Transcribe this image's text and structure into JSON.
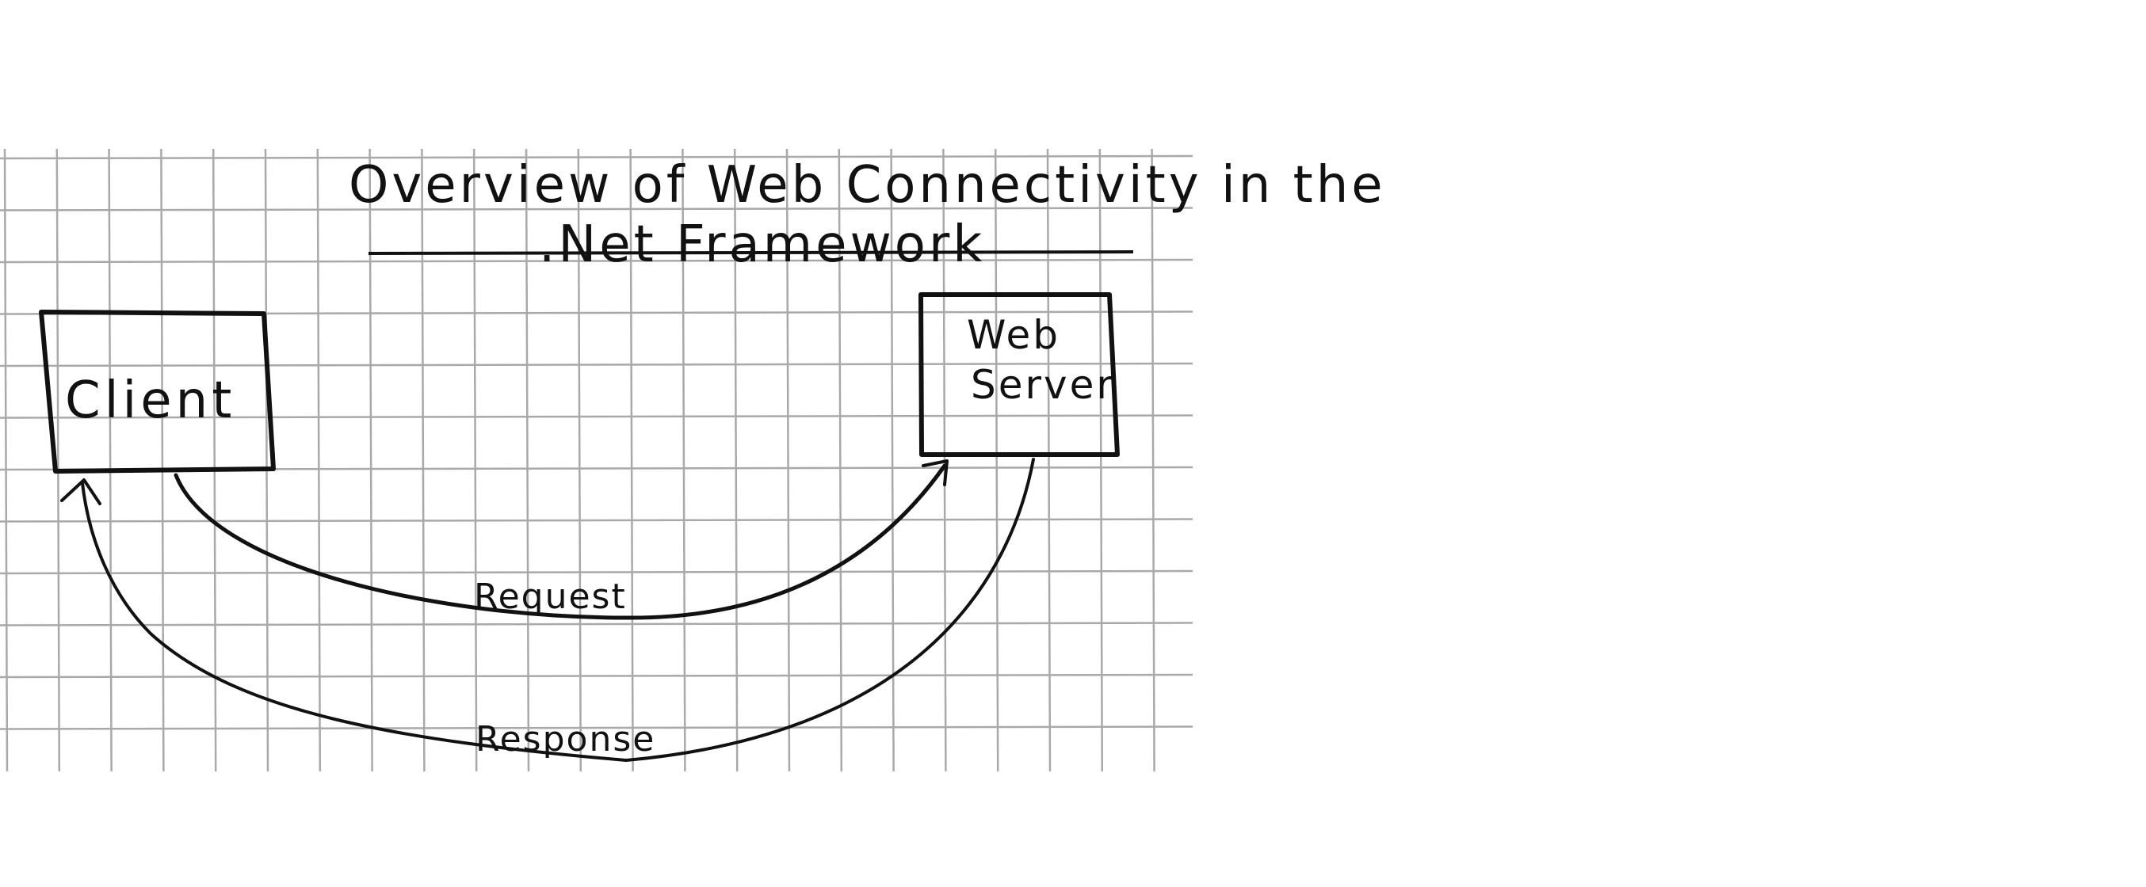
{
  "title": {
    "line1": "Overview of Web Connectivity in the",
    "line2": ".Net Framework"
  },
  "nodes": {
    "client": {
      "label": "Client"
    },
    "server": {
      "label_line1": "Web",
      "label_line2": "Server"
    }
  },
  "edges": {
    "request": {
      "label": "Request",
      "from": "Client",
      "to": "Web Server"
    },
    "response": {
      "label": "Response",
      "from": "Web Server",
      "to": "Client"
    }
  },
  "colors": {
    "paper": "#ffffff",
    "grid": "#a9a9a9",
    "ink": "#111111"
  }
}
